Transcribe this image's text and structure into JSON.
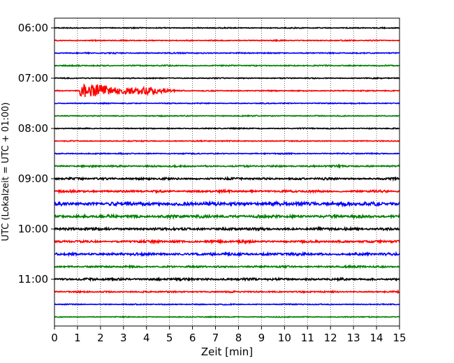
{
  "chart_data": {
    "type": "line",
    "title": "",
    "xlabel": "Zeit  [min]",
    "ylabel": "UTC (Lokalzeit = UTC + 01:00)",
    "xlim": [
      0,
      15
    ],
    "x_ticks": [
      "0",
      "1",
      "2",
      "3",
      "4",
      "5",
      "6",
      "7",
      "8",
      "9",
      "10",
      "11",
      "12",
      "13",
      "14",
      "15"
    ],
    "y_ticks": [
      "06:00",
      "07:00",
      "08:00",
      "09:00",
      "10:00",
      "11:00"
    ],
    "grid": "vertical dotted lines at each minute",
    "legend": "none",
    "trace_interval_minutes": 15,
    "trace_colors": [
      "#000000",
      "#ff0000",
      "#0000ff",
      "#008000"
    ],
    "traces": [
      {
        "start": "06:00",
        "amplitude": 0.8
      },
      {
        "start": "06:15",
        "amplitude": 0.8
      },
      {
        "start": "06:30",
        "amplitude": 0.9
      },
      {
        "start": "06:45",
        "amplitude": 0.9
      },
      {
        "start": "07:00",
        "amplitude": 0.8
      },
      {
        "start": "07:15",
        "amplitude": 0.8,
        "event": {
          "onset_min": 1.1,
          "peak_amplitude": 9.0,
          "end_min": 7.0
        }
      },
      {
        "start": "07:30",
        "amplitude": 0.8
      },
      {
        "start": "07:45",
        "amplitude": 0.8
      },
      {
        "start": "08:00",
        "amplitude": 0.8
      },
      {
        "start": "08:15",
        "amplitude": 0.8
      },
      {
        "start": "08:30",
        "amplitude": 0.9
      },
      {
        "start": "08:45",
        "amplitude": 1.3
      },
      {
        "start": "09:00",
        "amplitude": 1.6
      },
      {
        "start": "09:15",
        "amplitude": 1.7
      },
      {
        "start": "09:30",
        "amplitude": 2.8
      },
      {
        "start": "09:45",
        "amplitude": 2.3
      },
      {
        "start": "10:00",
        "amplitude": 2.0
      },
      {
        "start": "10:15",
        "amplitude": 1.8
      },
      {
        "start": "10:30",
        "amplitude": 2.0
      },
      {
        "start": "10:45",
        "amplitude": 1.4
      },
      {
        "start": "11:00",
        "amplitude": 1.8
      },
      {
        "start": "11:15",
        "amplitude": 1.2
      },
      {
        "start": "11:30",
        "amplitude": 0.8
      },
      {
        "start": "11:45",
        "amplitude": 0.7
      }
    ]
  }
}
